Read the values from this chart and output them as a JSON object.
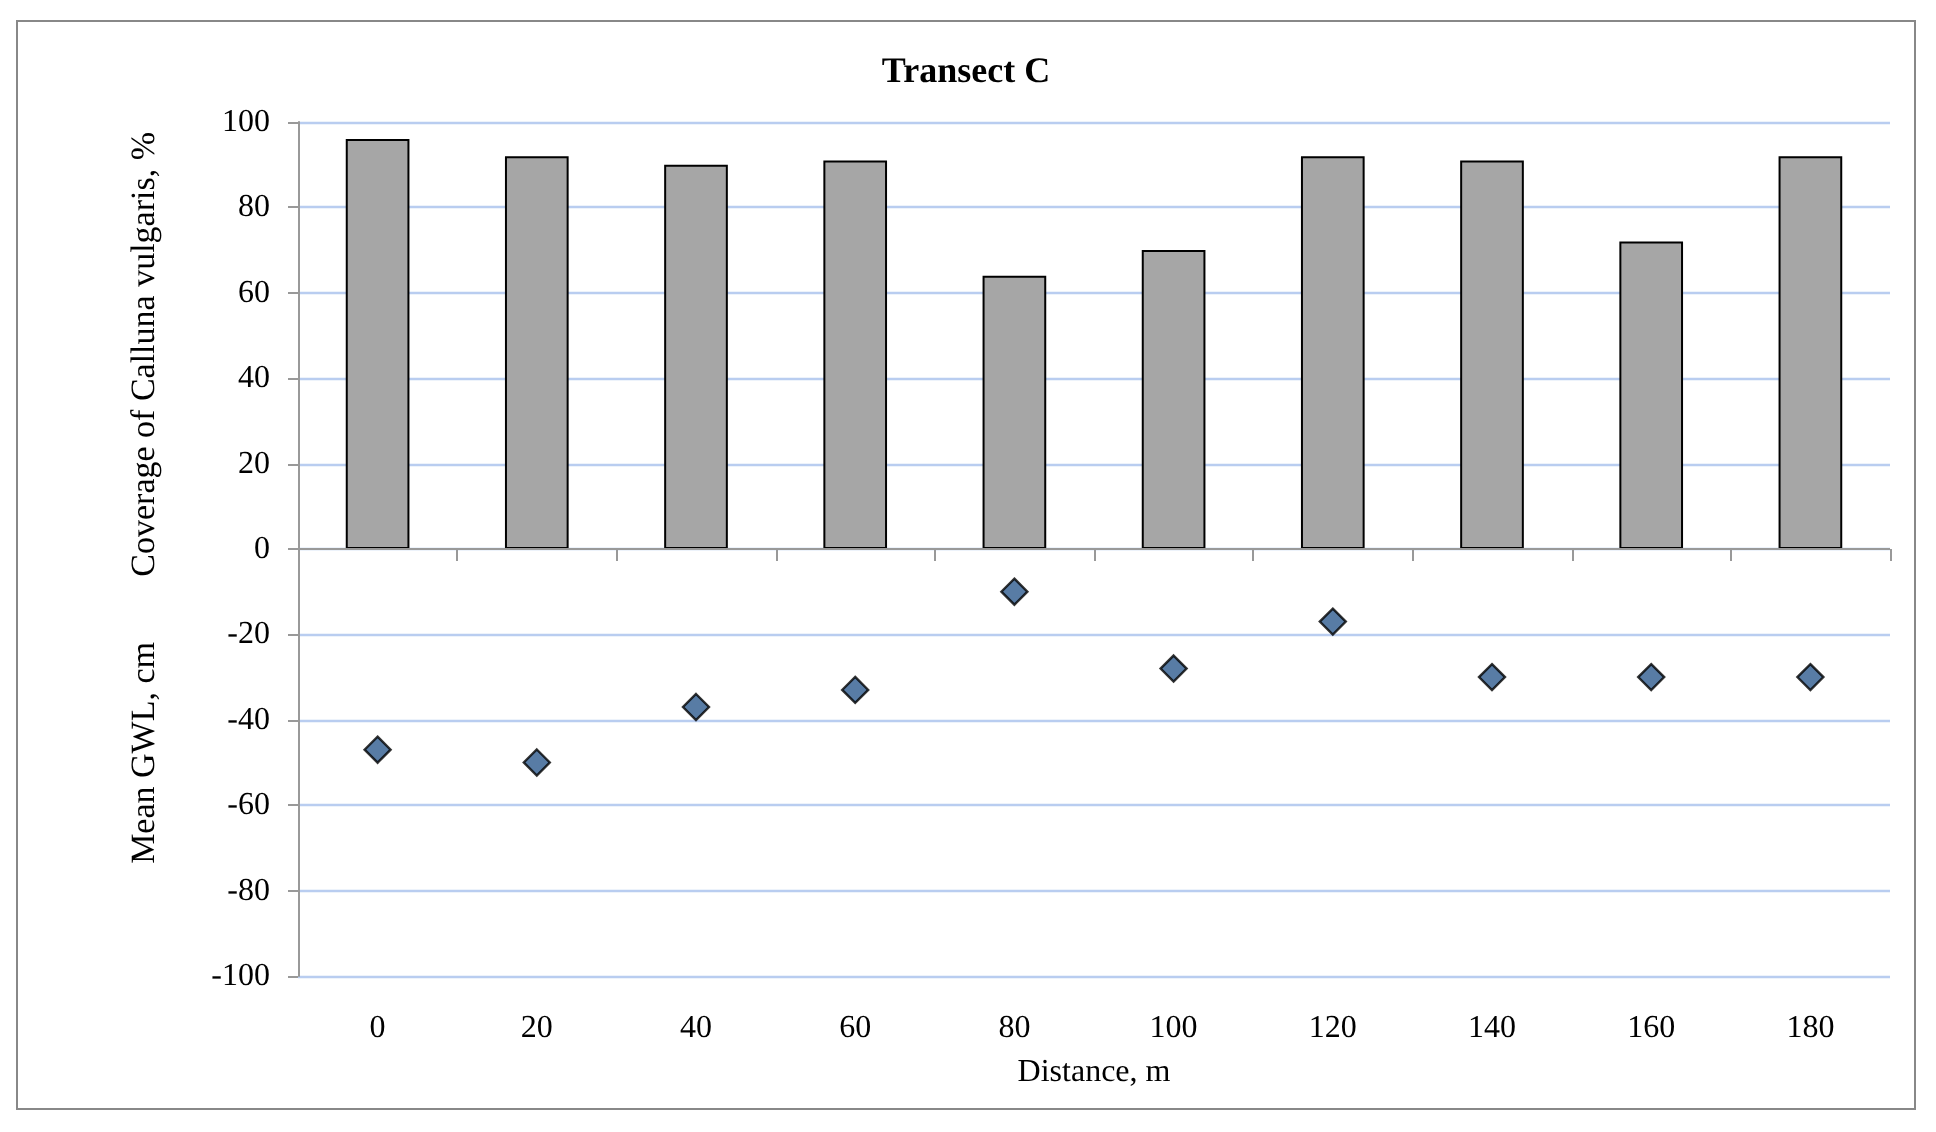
{
  "chart_data": {
    "type": "bar",
    "title": "Transect C",
    "xlabel": "Distance, m",
    "ylabel": "Coverage of Calluna vulgaris, %",
    "annotations": [
      "Mean GWL, cm"
    ],
    "categories": [
      "0",
      "20",
      "40",
      "60",
      "80",
      "100",
      "120",
      "140",
      "160",
      "180"
    ],
    "series": [
      {
        "color": "#a6a6a6",
        "values": [
          96,
          92,
          90,
          91,
          64,
          70,
          92,
          91,
          72,
          92
        ]
      },
      {
        "type": "scatter",
        "color": "#2e5b8e",
        "x": [
          "0",
          "20",
          "40",
          "60",
          "80",
          "100",
          "120",
          "140",
          "160",
          "180"
        ],
        "values": [
          -47,
          -50,
          -37,
          -33,
          -10,
          -28,
          -17,
          -30,
          -30,
          -30
        ]
      }
    ],
    "ylim": [
      -100,
      100
    ],
    "yticks": [
      -100,
      -80,
      -60,
      -40,
      -20,
      0,
      20,
      40,
      60,
      80,
      100
    ],
    "grid": "y",
    "marker": "diamond"
  }
}
